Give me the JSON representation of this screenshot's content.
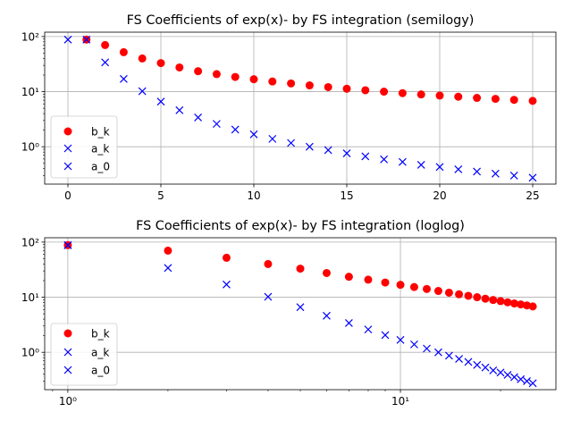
{
  "chart_data": [
    {
      "type": "scatter",
      "title": "FS Coefficients of exp(x)- by FS integration (semilogy)",
      "xlabel": "",
      "ylabel": "",
      "xscale": "linear",
      "yscale": "log",
      "xlim": [
        -1.25,
        26.25
      ],
      "ylim": [
        0.21,
        120
      ],
      "xticks": [
        0,
        5,
        10,
        15,
        20,
        25
      ],
      "xtick_labels": [
        "0",
        "5",
        "10",
        "15",
        "20",
        "25"
      ],
      "yticks": [
        1,
        10,
        100
      ],
      "ytick_labels": [
        "10⁰",
        "10¹",
        "10²"
      ],
      "grid": true,
      "legend_position": "lower-left",
      "series": [
        {
          "name": "b_k",
          "marker": "circle",
          "color": "#ff0000",
          "x": [
            1,
            2,
            3,
            4,
            5,
            6,
            7,
            8,
            9,
            10,
            11,
            12,
            13,
            14,
            15,
            16,
            17,
            18,
            19,
            20,
            21,
            22,
            23,
            24,
            25
          ],
          "y": [
            88,
            70,
            52,
            40,
            33,
            27.5,
            23.5,
            20.8,
            18.5,
            16.8,
            15.3,
            14.1,
            13.0,
            12.1,
            11.3,
            10.6,
            10.0,
            9.4,
            8.9,
            8.5,
            8.1,
            7.7,
            7.4,
            7.1,
            6.8
          ]
        },
        {
          "name": "a_k",
          "marker": "x",
          "color": "#0000ff",
          "x": [
            1,
            2,
            3,
            4,
            5,
            6,
            7,
            8,
            9,
            10,
            11,
            12,
            13,
            14,
            15,
            16,
            17,
            18,
            19,
            20,
            21,
            22,
            23,
            24,
            25
          ],
          "y": [
            88,
            34,
            17,
            10.2,
            6.6,
            4.6,
            3.4,
            2.6,
            2.05,
            1.68,
            1.39,
            1.17,
            1.0,
            0.87,
            0.76,
            0.67,
            0.59,
            0.53,
            0.47,
            0.43,
            0.39,
            0.355,
            0.325,
            0.3,
            0.275
          ]
        },
        {
          "name": "a_0",
          "marker": "x",
          "color": "#0000ff",
          "x": [
            0
          ],
          "y": [
            88
          ]
        }
      ]
    },
    {
      "type": "scatter",
      "title": "FS Coefficients of exp(x)-  by FS integration (loglog)",
      "xlabel": "",
      "ylabel": "",
      "xscale": "log",
      "yscale": "log",
      "xlim": [
        0.852,
        29.34
      ],
      "ylim": [
        0.21,
        120
      ],
      "xticks": [
        1,
        10
      ],
      "xtick_labels": [
        "10⁰",
        "10¹"
      ],
      "yticks": [
        1,
        10,
        100
      ],
      "ytick_labels": [
        "10⁰",
        "10¹",
        "10²"
      ],
      "grid": true,
      "legend_position": "lower-left",
      "series": [
        {
          "name": "b_k",
          "marker": "circle",
          "color": "#ff0000",
          "x": [
            1,
            2,
            3,
            4,
            5,
            6,
            7,
            8,
            9,
            10,
            11,
            12,
            13,
            14,
            15,
            16,
            17,
            18,
            19,
            20,
            21,
            22,
            23,
            24,
            25
          ],
          "y": [
            88,
            70,
            52,
            40,
            33,
            27.5,
            23.5,
            20.8,
            18.5,
            16.8,
            15.3,
            14.1,
            13.0,
            12.1,
            11.3,
            10.6,
            10.0,
            9.4,
            8.9,
            8.5,
            8.1,
            7.7,
            7.4,
            7.1,
            6.8
          ]
        },
        {
          "name": "a_k",
          "marker": "x",
          "color": "#0000ff",
          "x": [
            1,
            2,
            3,
            4,
            5,
            6,
            7,
            8,
            9,
            10,
            11,
            12,
            13,
            14,
            15,
            16,
            17,
            18,
            19,
            20,
            21,
            22,
            23,
            24,
            25
          ],
          "y": [
            88,
            34,
            17,
            10.2,
            6.6,
            4.6,
            3.4,
            2.6,
            2.05,
            1.68,
            1.39,
            1.17,
            1.0,
            0.87,
            0.76,
            0.67,
            0.59,
            0.53,
            0.47,
            0.43,
            0.39,
            0.355,
            0.325,
            0.3,
            0.275
          ]
        },
        {
          "name": "a_0",
          "marker": "x",
          "color": "#0000ff",
          "x": [
            1
          ],
          "y": [
            88
          ]
        }
      ]
    }
  ]
}
